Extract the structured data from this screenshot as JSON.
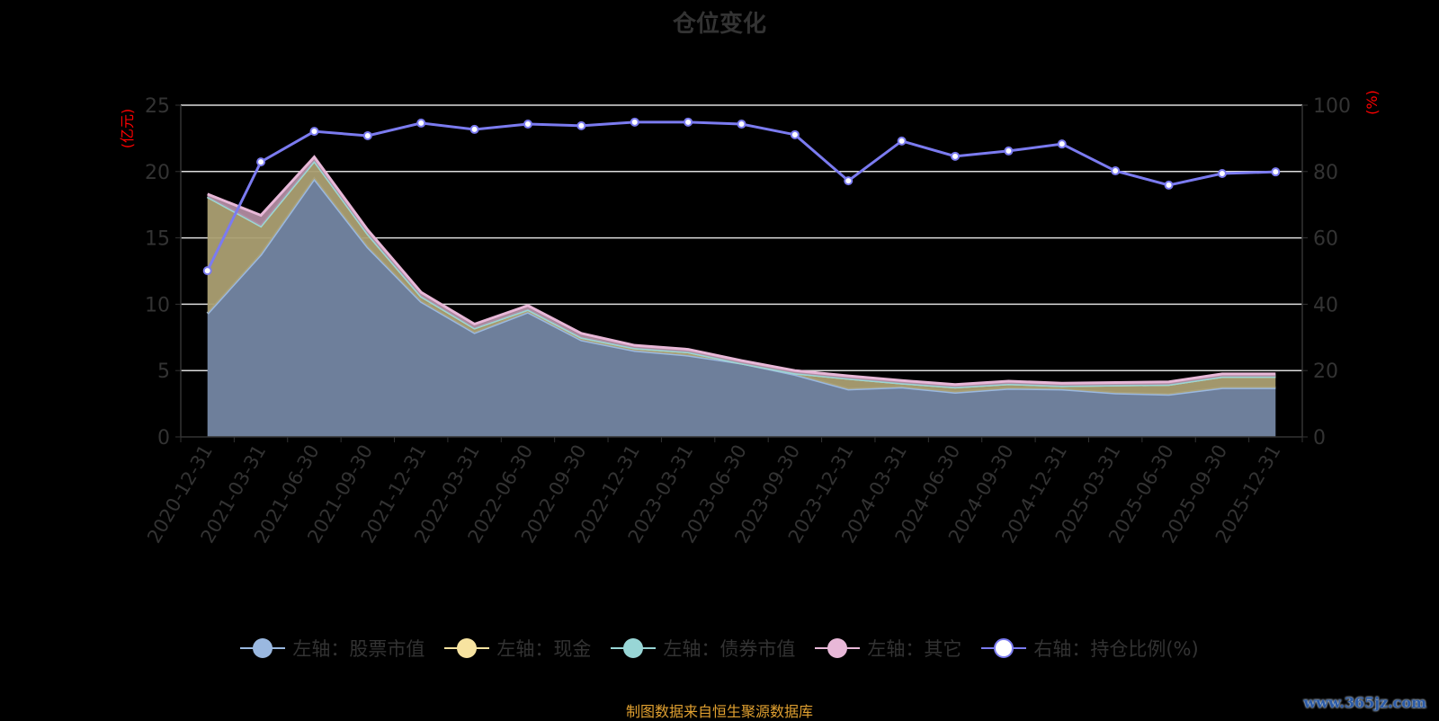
{
  "chart_data": {
    "type": "area",
    "title": "仓位变化",
    "ylabel_left": "(亿元)",
    "ylabel_right": "(%)",
    "ylim_left": [
      0,
      25
    ],
    "ylim_right": [
      0,
      100
    ],
    "yticks_left": [
      0,
      5,
      10,
      15,
      20,
      25
    ],
    "yticks_right": [
      0,
      20,
      40,
      60,
      80,
      100
    ],
    "grid": true,
    "legend_position": "bottom",
    "categories": [
      "2020-12-31",
      "2021-03-31",
      "2021-06-30",
      "2021-09-30",
      "2021-12-31",
      "2022-03-31",
      "2022-06-30",
      "2022-09-30",
      "2022-12-31",
      "2023-03-31",
      "2023-06-30",
      "2023-09-30",
      "2023-12-31",
      "2024-03-31",
      "2024-06-30",
      "2024-09-30",
      "2024-12-31",
      "2025-03-31",
      "2025-06-30",
      "2025-09-30",
      "2025-12-31"
    ],
    "series": [
      {
        "name": "左轴：股票市值",
        "axis": "left",
        "stack": true,
        "color": "#9ab8e0",
        "fill": "#6e7f9b",
        "values": [
          9.3,
          13.75,
          19.45,
          14.3,
          10.2,
          7.85,
          9.4,
          7.3,
          6.5,
          6.15,
          5.55,
          4.7,
          3.6,
          3.75,
          3.35,
          3.65,
          3.6,
          3.3,
          3.2,
          3.7,
          3.7
        ]
      },
      {
        "name": "左轴：现金",
        "axis": "left",
        "stack": true,
        "color": "#f7e3a0",
        "fill": "#ab9f72",
        "values": [
          8.8,
          2.15,
          1.35,
          1.0,
          0.4,
          0.35,
          0.2,
          0.2,
          0.2,
          0.25,
          0.0,
          0.1,
          0.8,
          0.3,
          0.4,
          0.35,
          0.25,
          0.6,
          0.75,
          0.85,
          0.85
        ]
      },
      {
        "name": "左轴：债券市值",
        "axis": "left",
        "stack": true,
        "color": "#98d6d6",
        "fill": "#7fb3b3",
        "values": [
          0,
          0,
          0,
          0,
          0,
          0,
          0,
          0,
          0,
          0,
          0,
          0,
          0,
          0,
          0,
          0,
          0,
          0,
          0,
          0,
          0
        ]
      },
      {
        "name": "左轴：其它",
        "axis": "left",
        "stack": true,
        "color": "#e8b8d8",
        "fill": "#b08aa0",
        "values": [
          0.2,
          0.8,
          0.3,
          0.3,
          0.3,
          0.3,
          0.3,
          0.3,
          0.2,
          0.2,
          0.2,
          0.2,
          0.2,
          0.2,
          0.2,
          0.2,
          0.2,
          0.2,
          0.2,
          0.2,
          0.2
        ]
      },
      {
        "name": "右轴：持仓比例(%)",
        "axis": "right",
        "stack": false,
        "color": "#7b7bf0",
        "values": [
          50.1,
          82.9,
          92.1,
          90.8,
          94.6,
          92.7,
          94.3,
          93.8,
          94.9,
          94.9,
          94.3,
          91.1,
          77.2,
          89.2,
          84.6,
          86.2,
          88.3,
          80.2,
          75.9,
          79.4,
          79.9
        ]
      }
    ]
  },
  "source": "制图数据来自恒生聚源数据库",
  "watermark": "www.365jz.com",
  "colors": {
    "axis_label": "#ff0000",
    "text": "#333333",
    "grid": "#dddddd"
  }
}
